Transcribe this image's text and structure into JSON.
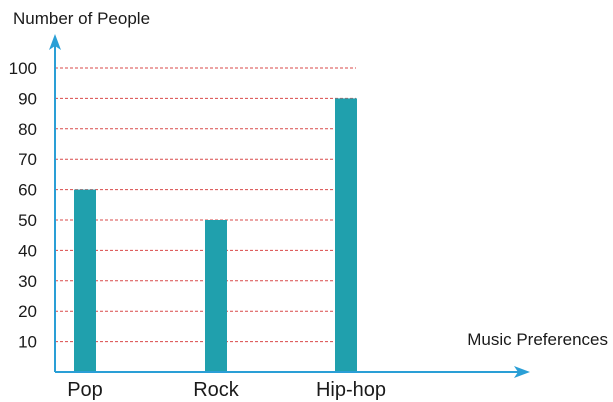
{
  "chart_data": {
    "type": "bar",
    "title": "",
    "ylabel": "Number of People",
    "xlabel": "Music Preferences",
    "categories": [
      "Pop",
      "Rock",
      "Hip-hop"
    ],
    "values": [
      60,
      50,
      90
    ],
    "yticks": [
      10,
      20,
      30,
      40,
      50,
      60,
      70,
      80,
      90,
      100
    ],
    "ylim": [
      0,
      100
    ],
    "grid": true,
    "colors": {
      "bar": "#20a0ad",
      "axis": "#2a9fd6",
      "grid": "#d94a4a"
    }
  }
}
